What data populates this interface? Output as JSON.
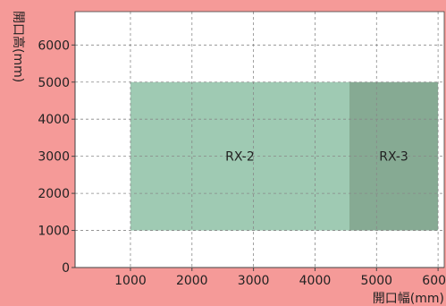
{
  "chart_data": {
    "type": "area",
    "xlabel": "開口幅(mm)",
    "ylabel": "開口高(mm)",
    "xlim": [
      100,
      6100
    ],
    "ylim": [
      0,
      6900
    ],
    "x_ticks": [
      "1000",
      "2000",
      "3000",
      "4000",
      "5000",
      "6000"
    ],
    "y_ticks": [
      "0",
      "1000",
      "2000",
      "3000",
      "4000",
      "5000",
      "6000"
    ],
    "grid": true,
    "regions": [
      {
        "name": "RX-2",
        "x_range": [
          1000,
          4560
        ],
        "y_range": [
          1000,
          5000
        ],
        "color": "#9fcab3"
      },
      {
        "name": "RX-3",
        "x_range": [
          4560,
          6000
        ],
        "y_range": [
          1000,
          5000
        ],
        "color": "#86aa93"
      }
    ]
  },
  "colors": {
    "background": "#f59a98",
    "plot_area": "#ffffff",
    "grid": "#888888",
    "axis": "#444444"
  }
}
